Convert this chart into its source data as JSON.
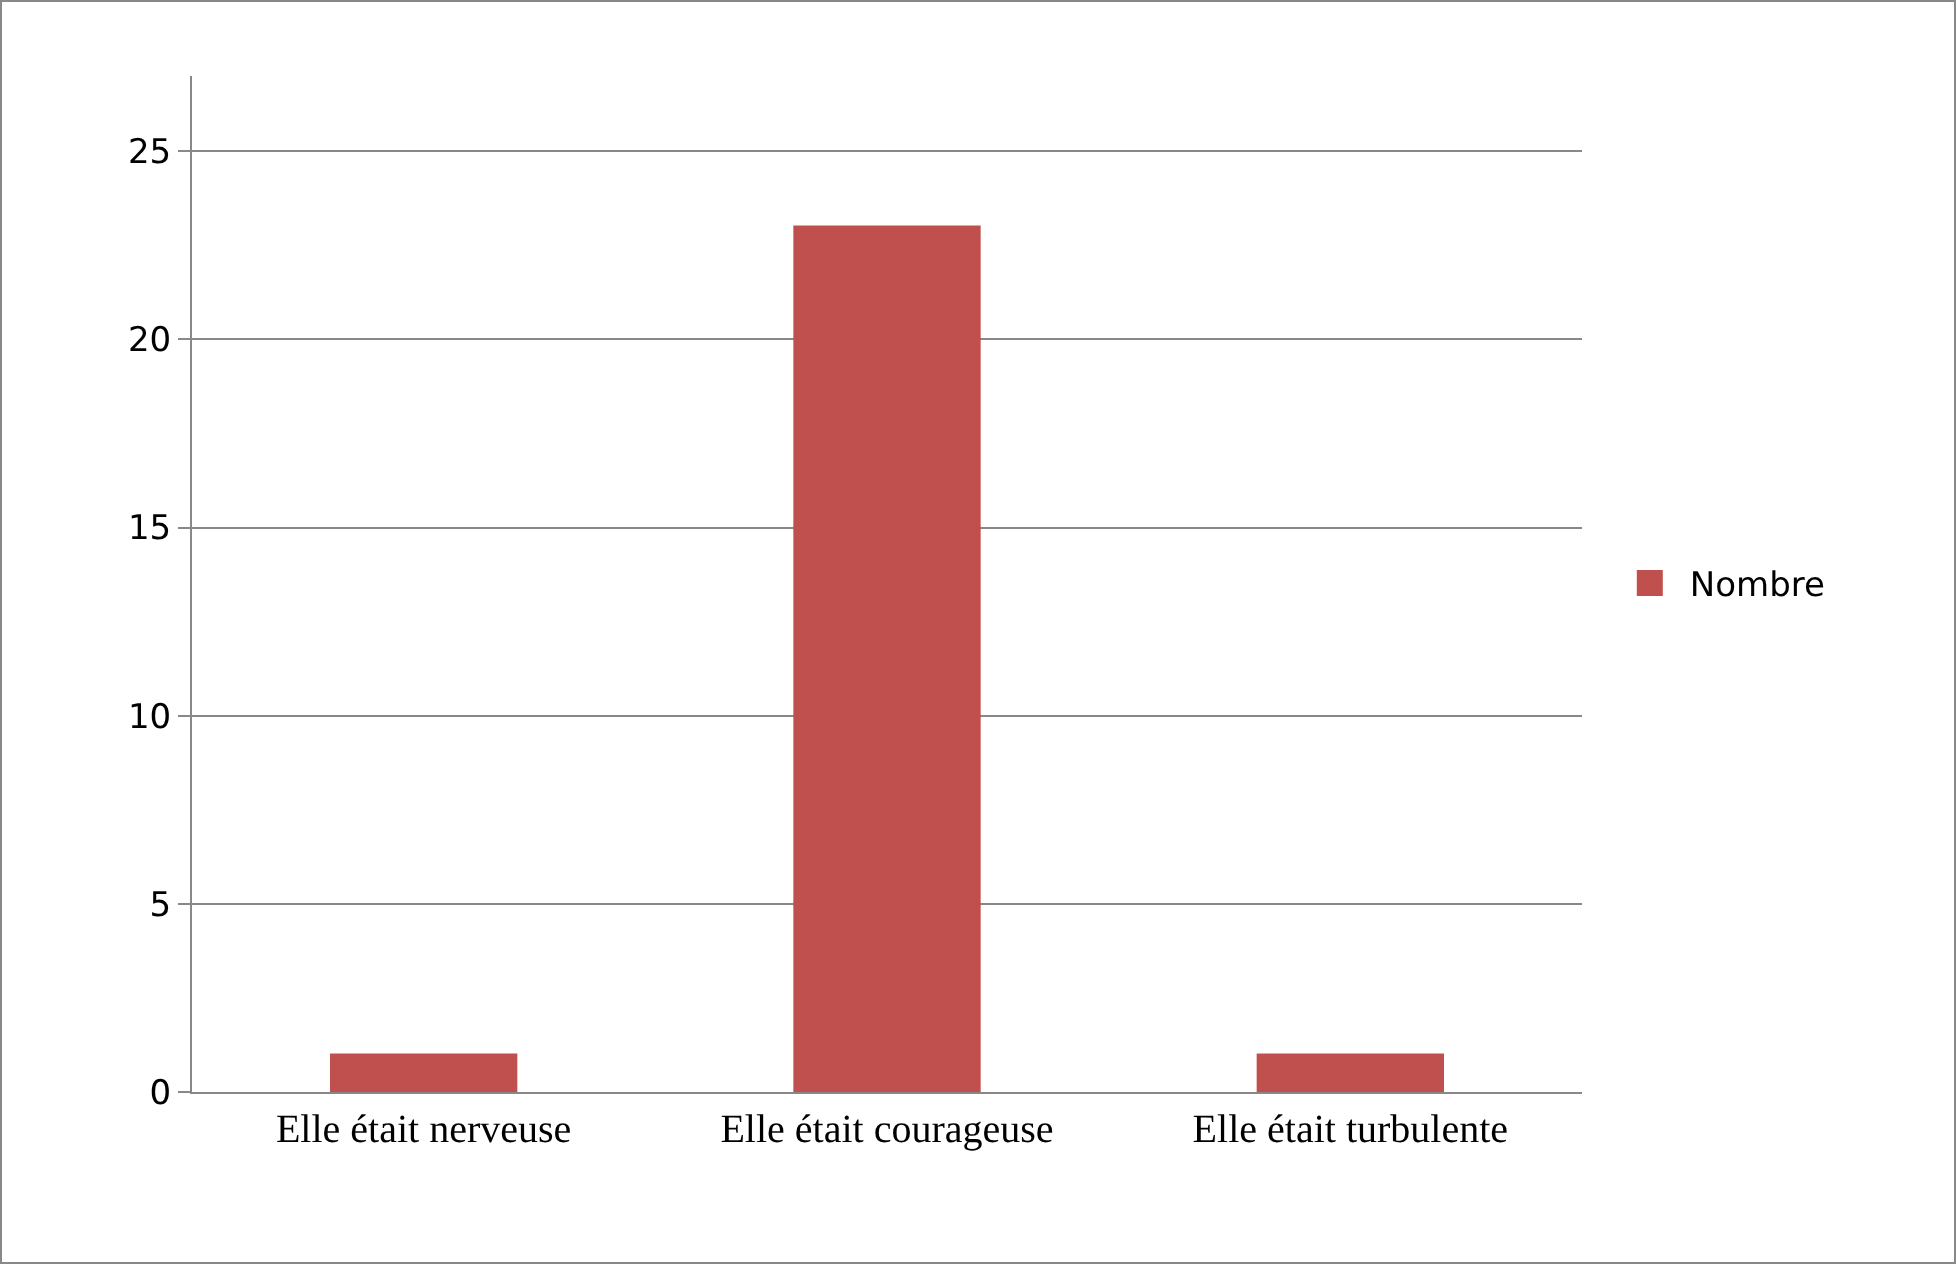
{
  "chart_data": {
    "type": "bar",
    "categories": [
      "Elle était nerveuse",
      "Elle était courageuse",
      "Elle était turbulente"
    ],
    "series": [
      {
        "name": "Nombre",
        "color": "#c0504d",
        "values": [
          1,
          23,
          1
        ]
      }
    ],
    "ylim": [
      0,
      27
    ],
    "yticks": [
      0,
      5,
      10,
      15,
      20,
      25
    ],
    "grid": "y",
    "legend": "right"
  }
}
